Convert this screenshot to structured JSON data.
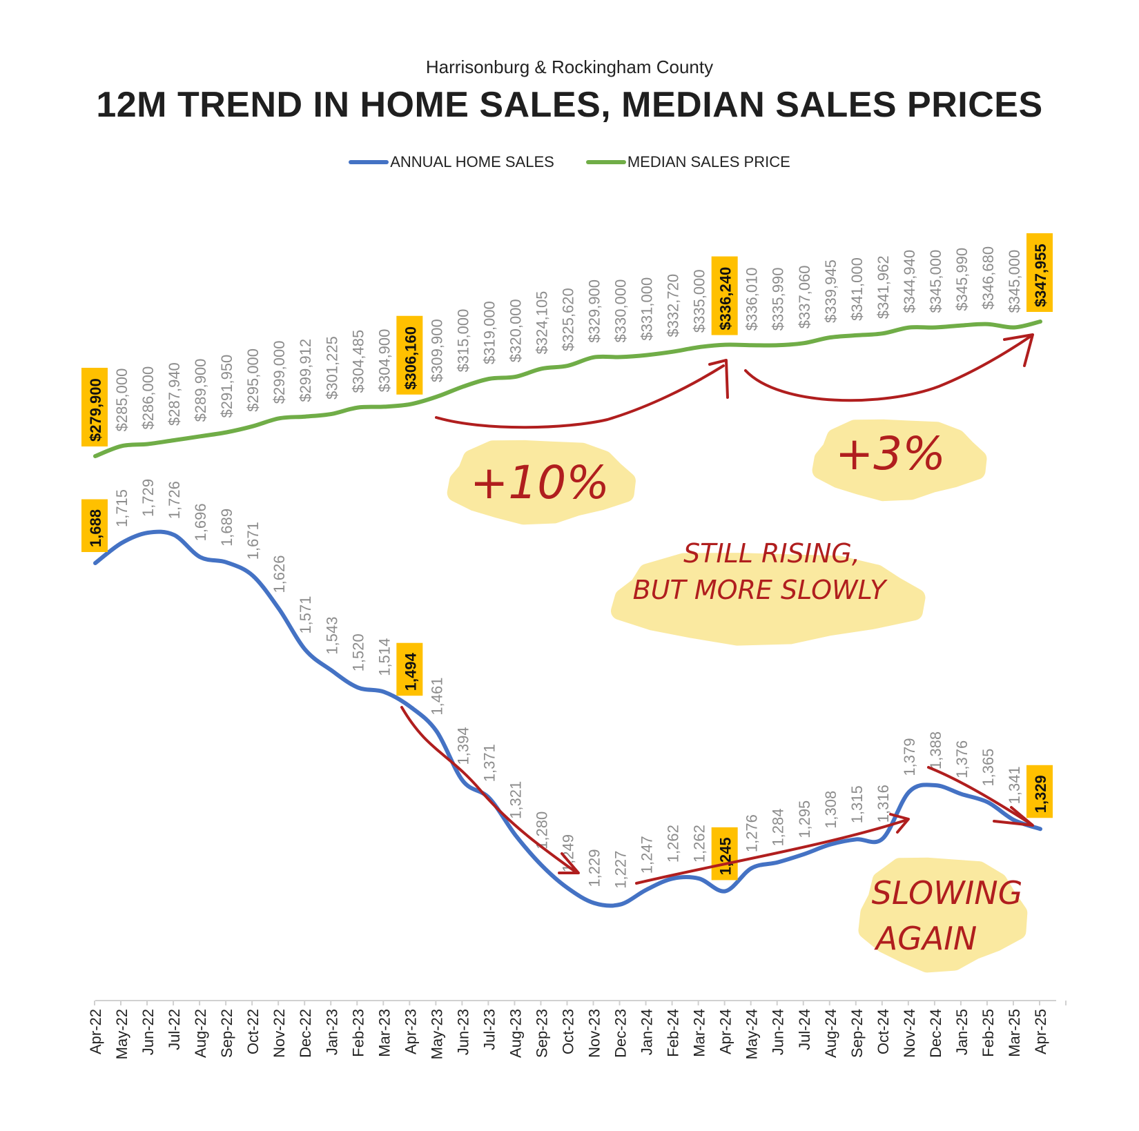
{
  "header": {
    "subtitle": "Harrisonburg & Rockingham County",
    "title": "12M TREND IN HOME SALES, MEDIAN SALES PRICES"
  },
  "legend": {
    "sales_label": "ANNUAL HOME SALES",
    "price_label": "MEDIAN SALES PRICE"
  },
  "colors": {
    "sales": "#4472c4",
    "price": "#70ad47",
    "highlight": "#ffc000",
    "label_gray": "#8c8c8c",
    "annotation_red": "#b01e1e",
    "bubble": "#fae9a0"
  },
  "chart_data": {
    "type": "line",
    "categories": [
      "Apr-22",
      "May-22",
      "Jun-22",
      "Jul-22",
      "Aug-22",
      "Sep-22",
      "Oct-22",
      "Nov-22",
      "Dec-22",
      "Jan-23",
      "Feb-23",
      "Mar-23",
      "Apr-23",
      "May-23",
      "Jun-23",
      "Jul-23",
      "Aug-23",
      "Sep-23",
      "Oct-23",
      "Nov-23",
      "Dec-23",
      "Jan-24",
      "Feb-24",
      "Mar-24",
      "Apr-24",
      "May-24",
      "Jun-24",
      "Jul-24",
      "Aug-24",
      "Sep-24",
      "Oct-24",
      "Nov-24",
      "Dec-24",
      "Jan-25",
      "Feb-25",
      "Mar-25",
      "Apr-25"
    ],
    "series": [
      {
        "name": "ANNUAL HOME SALES",
        "values": [
          1688,
          1715,
          1729,
          1726,
          1696,
          1689,
          1671,
          1626,
          1571,
          1543,
          1520,
          1514,
          1494,
          1461,
          1394,
          1371,
          1321,
          1280,
          1249,
          1229,
          1227,
          1247,
          1262,
          1262,
          1245,
          1276,
          1284,
          1295,
          1308,
          1315,
          1316,
          1379,
          1388,
          1376,
          1365,
          1341,
          1329
        ],
        "labels": [
          "1,688",
          "1,715",
          "1,729",
          "1,726",
          "1,696",
          "1,689",
          "1,671",
          "1,626",
          "1,571",
          "1,543",
          "1,520",
          "1,514",
          "1,494",
          "1,461",
          "1,394",
          "1,371",
          "1,321",
          "1,280",
          "1,249",
          "1,229",
          "1,227",
          "1,247",
          "1,262",
          "1,262",
          "1,245",
          "1,276",
          "1,284",
          "1,295",
          "1,308",
          "1,315",
          "1,316",
          "1,379",
          "1,388",
          "1,376",
          "1,365",
          "1,341",
          "1,329"
        ],
        "highlighted": [
          0,
          12,
          24,
          36
        ]
      },
      {
        "name": "MEDIAN SALES PRICE",
        "values": [
          279900,
          285000,
          286000,
          287940,
          289900,
          291950,
          295000,
          299000,
          299912,
          301225,
          304485,
          304900,
          306160,
          309900,
          315000,
          319000,
          320000,
          324105,
          325620,
          329900,
          330000,
          331000,
          332720,
          335000,
          336240,
          336010,
          335990,
          337060,
          339945,
          341000,
          341962,
          344940,
          345000,
          345990,
          346680,
          345000,
          347955
        ],
        "labels": [
          "$279,900",
          "$285,000",
          "$286,000",
          "$287,940",
          "$289,900",
          "$291,950",
          "$295,000",
          "$299,000",
          "$299,912",
          "$301,225",
          "$304,485",
          "$304,900",
          "$306,160",
          "$309,900",
          "$315,000",
          "$319,000",
          "$320,000",
          "$324,105",
          "$325,620",
          "$329,900",
          "$330,000",
          "$331,000",
          "$332,720",
          "$335,000",
          "$336,240",
          "$336,010",
          "$335,990",
          "$337,060",
          "$339,945",
          "$341,000",
          "$341,962",
          "$344,940",
          "$345,000",
          "$345,990",
          "$346,680",
          "$345,000",
          "$347,955"
        ],
        "highlighted": [
          0,
          12,
          24,
          36
        ]
      }
    ],
    "annotations": {
      "price_gain_1": "+10%",
      "price_gain_2": "+3%",
      "note_1_line1": "STILL RISING,",
      "note_1_line2": "BUT MORE SLOWLY",
      "note_2_line1": "SLOWING",
      "note_2_line2": "AGAIN"
    }
  }
}
